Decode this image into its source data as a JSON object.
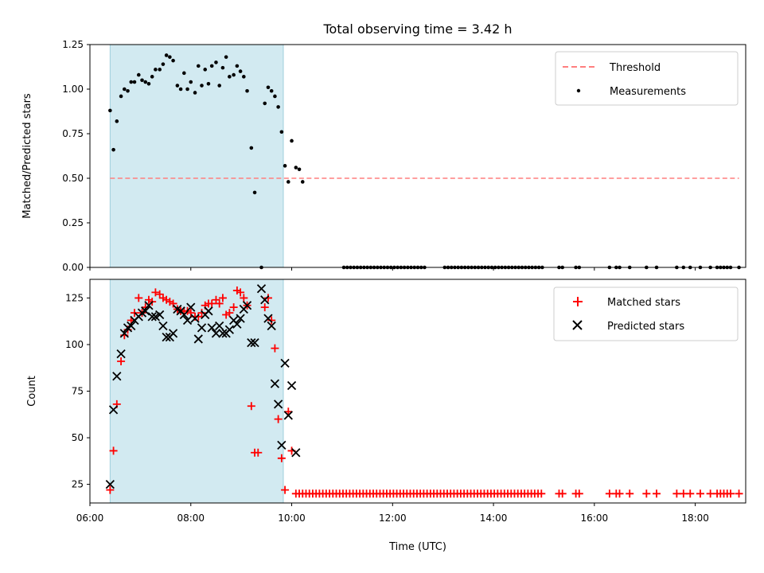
{
  "chart_data": [
    {
      "type": "scatter",
      "title": "Total observing time = 3.42 h",
      "xlabel": "",
      "ylabel": "Matched/Predicted stars",
      "xlim": [
        "06:00",
        "19:00"
      ],
      "ylim": [
        0,
        1.25
      ],
      "yticks": [
        "0.00",
        "0.25",
        "0.50",
        "0.75",
        "1.00",
        "1.25"
      ],
      "shaded_interval": [
        "06:24",
        "09:50"
      ],
      "shade_color": "#add8e6",
      "legend_position": "upper right",
      "threshold": {
        "name": "Threshold",
        "value": 0.5,
        "x_range": [
          "06:24",
          "18:52"
        ],
        "color": "#ff7f7f",
        "style": "dashed"
      },
      "series": [
        {
          "name": "Measurements",
          "marker": "dot",
          "color": "#000000",
          "points": [
            [
              "06:24",
              0.88
            ],
            [
              "06:28",
              0.66
            ],
            [
              "06:32",
              0.82
            ],
            [
              "06:37",
              0.96
            ],
            [
              "06:41",
              1.0
            ],
            [
              "06:45",
              0.99
            ],
            [
              "06:49",
              1.04
            ],
            [
              "06:53",
              1.04
            ],
            [
              "06:58",
              1.08
            ],
            [
              "07:02",
              1.05
            ],
            [
              "07:06",
              1.04
            ],
            [
              "07:10",
              1.03
            ],
            [
              "07:14",
              1.07
            ],
            [
              "07:18",
              1.11
            ],
            [
              "07:23",
              1.11
            ],
            [
              "07:27",
              1.14
            ],
            [
              "07:31",
              1.19
            ],
            [
              "07:35",
              1.18
            ],
            [
              "07:39",
              1.16
            ],
            [
              "07:44",
              1.02
            ],
            [
              "07:48",
              1.0
            ],
            [
              "07:52",
              1.09
            ],
            [
              "07:56",
              1.0
            ],
            [
              "08:00",
              1.04
            ],
            [
              "08:05",
              0.98
            ],
            [
              "08:09",
              1.13
            ],
            [
              "08:13",
              1.02
            ],
            [
              "08:17",
              1.11
            ],
            [
              "08:21",
              1.03
            ],
            [
              "08:25",
              1.13
            ],
            [
              "08:30",
              1.15
            ],
            [
              "08:34",
              1.02
            ],
            [
              "08:38",
              1.12
            ],
            [
              "08:42",
              1.18
            ],
            [
              "08:46",
              1.07
            ],
            [
              "08:51",
              1.08
            ],
            [
              "08:55",
              1.13
            ],
            [
              "08:59",
              1.1
            ],
            [
              "09:03",
              1.07
            ],
            [
              "09:07",
              0.99
            ],
            [
              "09:12",
              0.67
            ],
            [
              "09:16",
              0.42
            ],
            [
              "09:24",
              0.0
            ],
            [
              "09:28",
              0.92
            ],
            [
              "09:32",
              1.01
            ],
            [
              "09:36",
              0.99
            ],
            [
              "09:40",
              0.96
            ],
            [
              "09:44",
              0.9
            ],
            [
              "09:48",
              0.76
            ],
            [
              "09:52",
              0.57
            ],
            [
              "09:56",
              0.48
            ],
            [
              "10:00",
              0.71
            ],
            [
              "10:05",
              0.56
            ],
            [
              "10:09",
              0.55
            ],
            [
              "10:13",
              0.48
            ]
          ]
        }
      ],
      "zeros": [
        "11:02",
        "11:06",
        "11:10",
        "11:14",
        "11:18",
        "11:22",
        "11:26",
        "11:30",
        "11:34",
        "11:38",
        "11:42",
        "11:46",
        "11:50",
        "11:54",
        "11:58",
        "12:02",
        "12:06",
        "12:10",
        "12:14",
        "12:18",
        "12:22",
        "12:26",
        "12:30",
        "12:34",
        "12:38",
        "13:02",
        "13:06",
        "13:10",
        "13:14",
        "13:18",
        "13:22",
        "13:26",
        "13:30",
        "13:34",
        "13:38",
        "13:42",
        "13:46",
        "13:50",
        "13:54",
        "13:58",
        "14:02",
        "14:06",
        "14:10",
        "14:14",
        "14:18",
        "14:22",
        "14:26",
        "14:30",
        "14:34",
        "14:38",
        "14:42",
        "14:46",
        "14:50",
        "14:54",
        "14:58",
        "15:18",
        "15:22",
        "15:38",
        "15:42",
        "16:18",
        "16:26",
        "16:30",
        "16:42",
        "17:02",
        "17:14",
        "17:38",
        "17:46",
        "17:54",
        "18:06",
        "18:18",
        "18:26",
        "18:30",
        "18:34",
        "18:38",
        "18:42",
        "18:52"
      ]
    },
    {
      "type": "scatter",
      "title": "",
      "xlabel": "Time (UTC)",
      "ylabel": "Count",
      "xlim": [
        "06:00",
        "19:00"
      ],
      "ylim": [
        15,
        135
      ],
      "xticks": [
        "06:00",
        "08:00",
        "10:00",
        "12:00",
        "14:00",
        "16:00",
        "18:00"
      ],
      "yticks": [
        "25",
        "50",
        "75",
        "100",
        "125"
      ],
      "shaded_interval": [
        "06:24",
        "09:50"
      ],
      "shade_color": "#add8e6",
      "legend_position": "upper right",
      "series": [
        {
          "name": "Matched stars",
          "marker": "plus",
          "color": "#ff0000",
          "points": [
            [
              "06:24",
              22
            ],
            [
              "06:28",
              43
            ],
            [
              "06:32",
              68
            ],
            [
              "06:37",
              91
            ],
            [
              "06:41",
              105
            ],
            [
              "06:45",
              108
            ],
            [
              "06:49",
              113
            ],
            [
              "06:53",
              117
            ],
            [
              "06:58",
              125
            ],
            [
              "07:02",
              117
            ],
            [
              "07:06",
              120
            ],
            [
              "07:10",
              124
            ],
            [
              "07:14",
              123
            ],
            [
              "07:18",
              128
            ],
            [
              "07:23",
              127
            ],
            [
              "07:27",
              125
            ],
            [
              "07:31",
              124
            ],
            [
              "07:35",
              123
            ],
            [
              "07:39",
              122
            ],
            [
              "07:44",
              119
            ],
            [
              "07:48",
              118
            ],
            [
              "07:52",
              118
            ],
            [
              "07:56",
              118
            ],
            [
              "08:00",
              117
            ],
            [
              "08:05",
              115
            ],
            [
              "08:09",
              115
            ],
            [
              "08:13",
              117
            ],
            [
              "08:17",
              121
            ],
            [
              "08:21",
              122
            ],
            [
              "08:25",
              122
            ],
            [
              "08:30",
              124
            ],
            [
              "08:34",
              122
            ],
            [
              "08:38",
              125
            ],
            [
              "08:42",
              116
            ],
            [
              "08:46",
              117
            ],
            [
              "08:51",
              120
            ],
            [
              "08:55",
              129
            ],
            [
              "08:59",
              128
            ],
            [
              "09:03",
              125
            ],
            [
              "09:07",
              121
            ],
            [
              "09:12",
              67
            ],
            [
              "09:16",
              42
            ],
            [
              "09:20",
              42
            ],
            [
              "09:28",
              120
            ],
            [
              "09:32",
              125
            ],
            [
              "09:36",
              113
            ],
            [
              "09:40",
              98
            ],
            [
              "09:44",
              60
            ],
            [
              "09:48",
              39
            ],
            [
              "09:52",
              22
            ],
            [
              "09:56",
              64
            ],
            [
              "10:00",
              43
            ]
          ]
        },
        {
          "name": "Predicted stars",
          "marker": "x",
          "color": "#000000",
          "points": [
            [
              "06:24",
              25
            ],
            [
              "06:28",
              65
            ],
            [
              "06:32",
              83
            ],
            [
              "06:37",
              95
            ],
            [
              "06:41",
              106
            ],
            [
              "06:45",
              109
            ],
            [
              "06:49",
              110
            ],
            [
              "06:53",
              113
            ],
            [
              "06:58",
              115
            ],
            [
              "07:02",
              117
            ],
            [
              "07:06",
              118
            ],
            [
              "07:10",
              121
            ],
            [
              "07:14",
              115
            ],
            [
              "07:18",
              115
            ],
            [
              "07:23",
              116
            ],
            [
              "07:27",
              110
            ],
            [
              "07:31",
              104
            ],
            [
              "07:35",
              104
            ],
            [
              "07:39",
              106
            ],
            [
              "07:44",
              119
            ],
            [
              "07:48",
              118
            ],
            [
              "07:52",
              116
            ],
            [
              "07:56",
              113
            ],
            [
              "08:00",
              120
            ],
            [
              "08:05",
              114
            ],
            [
              "08:09",
              103
            ],
            [
              "08:13",
              109
            ],
            [
              "08:17",
              116
            ],
            [
              "08:21",
              118
            ],
            [
              "08:25",
              109
            ],
            [
              "08:30",
              106
            ],
            [
              "08:34",
              110
            ],
            [
              "08:38",
              106
            ],
            [
              "08:42",
              106
            ],
            [
              "08:46",
              108
            ],
            [
              "08:51",
              113
            ],
            [
              "08:55",
              111
            ],
            [
              "08:59",
              114
            ],
            [
              "09:03",
              119
            ],
            [
              "09:07",
              121
            ],
            [
              "09:12",
              101
            ],
            [
              "09:16",
              101
            ],
            [
              "09:24",
              130
            ],
            [
              "09:28",
              124
            ],
            [
              "09:32",
              114
            ],
            [
              "09:36",
              110
            ],
            [
              "09:40",
              79
            ],
            [
              "09:44",
              68
            ],
            [
              "09:48",
              46
            ],
            [
              "09:52",
              90
            ],
            [
              "09:56",
              62
            ],
            [
              "10:00",
              78
            ],
            [
              "10:05",
              42
            ]
          ]
        }
      ],
      "floor_series": {
        "name": "Matched stars",
        "value": 20,
        "times": [
          "10:05",
          "10:09",
          "10:13",
          "10:17",
          "10:21",
          "10:25",
          "10:29",
          "10:33",
          "10:37",
          "10:41",
          "10:45",
          "10:49",
          "10:53",
          "10:57",
          "11:01",
          "11:05",
          "11:09",
          "11:13",
          "11:17",
          "11:21",
          "11:25",
          "11:29",
          "11:33",
          "11:37",
          "11:41",
          "11:45",
          "11:49",
          "11:53",
          "11:57",
          "12:01",
          "12:05",
          "12:09",
          "12:13",
          "12:17",
          "12:21",
          "12:25",
          "12:29",
          "12:33",
          "12:37",
          "12:41",
          "12:45",
          "12:49",
          "12:53",
          "12:57",
          "13:01",
          "13:05",
          "13:09",
          "13:13",
          "13:17",
          "13:21",
          "13:25",
          "13:29",
          "13:33",
          "13:37",
          "13:41",
          "13:45",
          "13:49",
          "13:53",
          "13:57",
          "14:01",
          "14:05",
          "14:09",
          "14:13",
          "14:17",
          "14:21",
          "14:25",
          "14:29",
          "14:33",
          "14:37",
          "14:41",
          "14:45",
          "14:49",
          "14:53",
          "14:57",
          "15:18",
          "15:22",
          "15:38",
          "15:42",
          "16:18",
          "16:26",
          "16:30",
          "16:42",
          "17:02",
          "17:14",
          "17:38",
          "17:46",
          "17:54",
          "18:06",
          "18:18",
          "18:26",
          "18:30",
          "18:34",
          "18:38",
          "18:42",
          "18:52"
        ]
      }
    }
  ]
}
